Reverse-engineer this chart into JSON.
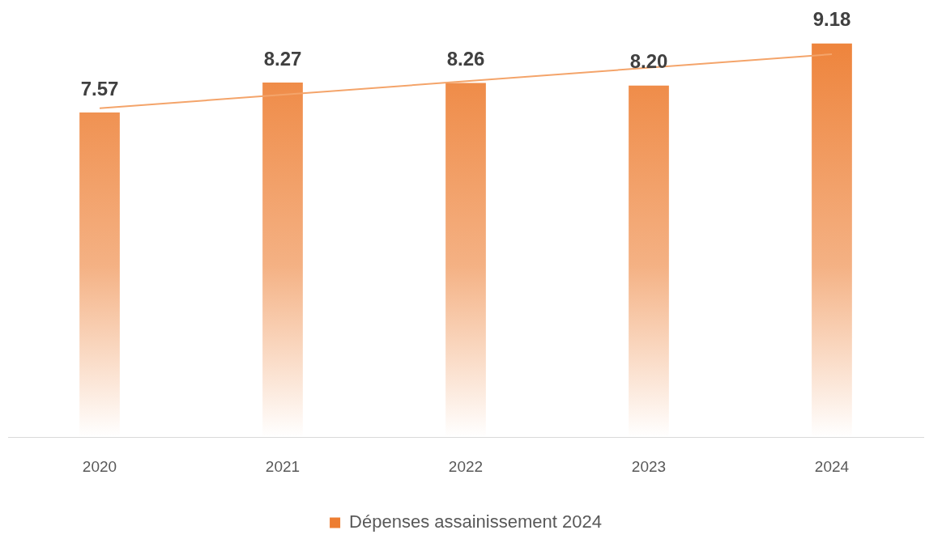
{
  "chart_data": {
    "type": "bar",
    "categories": [
      "2020",
      "2021",
      "2022",
      "2023",
      "2024"
    ],
    "series": [
      {
        "name": "Dépenses assainissement 2024",
        "color": "#ed7d31",
        "values": [
          7.57,
          8.27,
          8.26,
          8.2,
          9.18
        ],
        "value_labels": [
          "7.57",
          "8.27",
          "8.26",
          "8.20",
          "9.18"
        ]
      },
      {
        "type": "line",
        "color": "#f4a46a",
        "values": [
          7.67,
          null,
          null,
          null,
          8.93
        ]
      }
    ],
    "grid": false,
    "legend": "bottom",
    "tick_labels": "x",
    "marker": "none"
  }
}
